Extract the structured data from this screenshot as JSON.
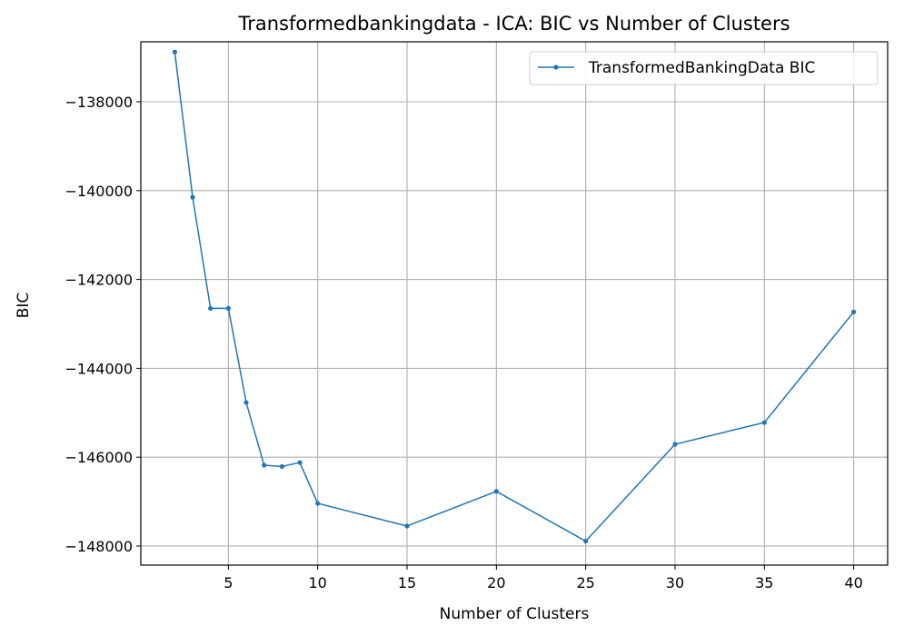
{
  "chart_data": {
    "type": "line",
    "title": "Transformedbankingdata - ICA: BIC vs Number of Clusters",
    "xlabel": "Number of Clusters",
    "ylabel": "BIC",
    "xlim": [
      0.1,
      41.9
    ],
    "ylim": [
      -148430,
      -136650
    ],
    "xticks": [
      5,
      10,
      15,
      20,
      25,
      30,
      35,
      40
    ],
    "xtick_labels": [
      "5",
      "10",
      "15",
      "20",
      "25",
      "30",
      "35",
      "40"
    ],
    "yticks": [
      -148000,
      -146000,
      -144000,
      -142000,
      -140000,
      -138000
    ],
    "ytick_labels": [
      "−148000",
      "−146000",
      "−144000",
      "−142000",
      "−140000",
      "−138000"
    ],
    "grid": true,
    "legend_position": "top-right",
    "series": [
      {
        "name": "TransformedBankingData BIC",
        "color": "#1f77b4",
        "marker": "point",
        "x": [
          2,
          3,
          4,
          5,
          6,
          7,
          8,
          9,
          10,
          15,
          20,
          25,
          30,
          35,
          40
        ],
        "y": [
          -136880,
          -140150,
          -142650,
          -142650,
          -144770,
          -146180,
          -146210,
          -146120,
          -147040,
          -147550,
          -146770,
          -147890,
          -145710,
          -145220,
          -142730
        ]
      }
    ]
  }
}
